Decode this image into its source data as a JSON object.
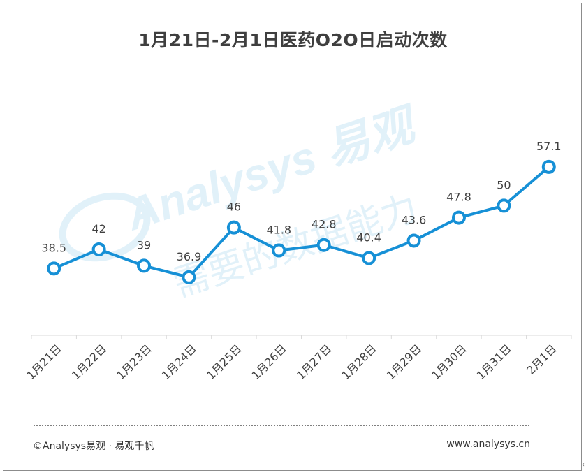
{
  "chart_data": {
    "type": "line",
    "title": "1月21日-2月1日医药O2O日启动次数",
    "categories": [
      "1月21日",
      "1月22日",
      "1月23日",
      "1月24日",
      "1月25日",
      "1月26日",
      "1月27日",
      "1月28日",
      "1月29日",
      "1月30日",
      "1月31日",
      "2月1日"
    ],
    "values": [
      38.5,
      42,
      39,
      36.9,
      46,
      41.8,
      42.8,
      40.4,
      43.6,
      47.8,
      50,
      57.1
    ],
    "data_labels": [
      "38.5",
      "42",
      "39",
      "36.9",
      "46",
      "41.8",
      "42.8",
      "40.4",
      "43.6",
      "47.8",
      "50",
      "57.1"
    ],
    "grid": false,
    "legend": "none",
    "colors": {
      "line": "#1690d6",
      "marker_fill": "#ffffff",
      "axis": "#d9d9d9",
      "label": "#404040"
    }
  },
  "watermark": {
    "latin": "Analysys 易观",
    "cn": "需要的数据能力"
  },
  "footer": {
    "left": "©Analysys易观 · 易观千帆",
    "right": "www.analysys.cn",
    "edge": "‹"
  }
}
